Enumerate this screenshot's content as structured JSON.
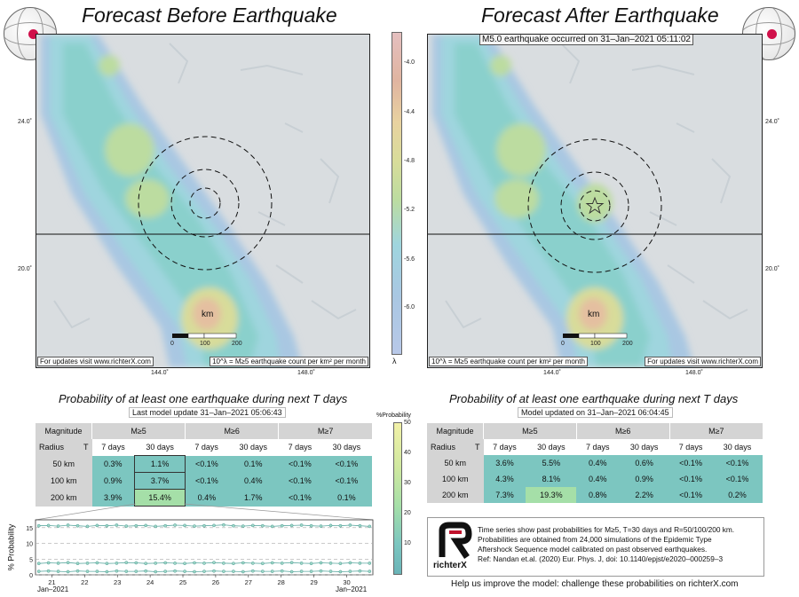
{
  "left_title": "Forecast Before Earthquake",
  "right_title": "Forecast After Earthquake",
  "eq_banner": "M5.0 earthquake occurred on 31–Jan–2021 05:11:02",
  "maps": {
    "lat_labels": [
      "24.0˚",
      "20.0˚"
    ],
    "lon_labels": [
      "144.0˚",
      "148.0˚"
    ],
    "scalebar": [
      "0",
      "100",
      "200"
    ],
    "scale_unit": "km",
    "updates_note": "For updates visit www.richterX.com",
    "density_note": "10^λ = M≥5 earthquake count per km² per month"
  },
  "colorbar": {
    "ticks": [
      "-4.0",
      "-4.4",
      "-4.8",
      "-5.2",
      "-5.6",
      "-6.0"
    ],
    "symbol": "λ"
  },
  "left_table": {
    "subtitle": "Probability of at least one earthquake during next T days",
    "update": "Last model update 31–Jan–2021 05:06:43",
    "mag_header": "Magnitude",
    "mags": [
      "M≥5",
      "M≥6",
      "M≥7"
    ],
    "radius_header": "Radius",
    "t_header": "T",
    "periods": [
      "7 days",
      "30 days",
      "7 days",
      "30 days",
      "7 days",
      "30 days"
    ],
    "rows": [
      {
        "radius": "50 km",
        "values": [
          "0.3%",
          "1.1%",
          "<0.1%",
          "0.1%",
          "<0.1%",
          "<0.1%"
        ]
      },
      {
        "radius": "100 km",
        "values": [
          "0.9%",
          "3.7%",
          "<0.1%",
          "0.4%",
          "<0.1%",
          "<0.1%"
        ]
      },
      {
        "radius": "200 km",
        "values": [
          "3.9%",
          "15.4%",
          "0.4%",
          "1.7%",
          "<0.1%",
          "0.1%"
        ]
      }
    ]
  },
  "right_table": {
    "subtitle": "Probability of at least one earthquake during next T days",
    "update": "Model updated on 31–Jan–2021 06:04:45",
    "mag_header": "Magnitude",
    "mags": [
      "M≥5",
      "M≥6",
      "M≥7"
    ],
    "radius_header": "Radius",
    "t_header": "T",
    "periods": [
      "7 days",
      "30 days",
      "7 days",
      "30 days",
      "7 days",
      "30 days"
    ],
    "rows": [
      {
        "radius": "50 km",
        "values": [
          "3.6%",
          "5.5%",
          "0.4%",
          "0.6%",
          "<0.1%",
          "<0.1%"
        ]
      },
      {
        "radius": "100 km",
        "values": [
          "4.3%",
          "8.1%",
          "0.4%",
          "0.9%",
          "<0.1%",
          "<0.1%"
        ]
      },
      {
        "radius": "200 km",
        "values": [
          "7.3%",
          "19.3%",
          "0.8%",
          "2.2%",
          "<0.1%",
          "0.2%"
        ]
      }
    ]
  },
  "prob_colorbar": {
    "label": "%Probability",
    "ticks": [
      "50",
      "40",
      "30",
      "20",
      "10"
    ]
  },
  "chart_data": {
    "type": "line",
    "ylabel": "% Probability",
    "xlabel": "",
    "x_ticks": [
      "21",
      "22",
      "23",
      "24",
      "25",
      "26",
      "27",
      "28",
      "29",
      "30"
    ],
    "x_start_label": "Jan–2021",
    "x_end_label": "Jan–2021",
    "y_ticks": [
      "15",
      "10",
      "5",
      "0"
    ],
    "ylim": [
      0,
      17.5
    ],
    "xlim": [
      20.5,
      30.8
    ],
    "grid": true,
    "series": [
      {
        "values": [
          15.6,
          15.7,
          15.5,
          15.8,
          15.6,
          15.4,
          15.7,
          15.6,
          15.8,
          15.5,
          15.6,
          15.7,
          15.4,
          15.6,
          15.8,
          15.7,
          15.5,
          15.6,
          15.7,
          15.9,
          15.6,
          15.5,
          15.7,
          15.6,
          15.4,
          15.6,
          15.7,
          15.8,
          15.6,
          15.5,
          15.7,
          15.6,
          15.8,
          15.6,
          15.4
        ]
      },
      {
        "values": [
          3.6,
          3.8,
          3.7,
          3.9,
          3.6,
          3.7,
          3.8,
          3.6,
          3.7,
          3.9,
          3.8,
          3.6,
          3.7,
          3.8,
          3.7,
          3.6,
          3.8,
          3.7,
          3.9,
          3.7,
          3.6,
          3.8,
          3.7,
          3.6,
          3.8,
          3.7,
          3.9,
          3.7,
          3.6,
          3.8,
          3.7,
          3.6,
          3.8,
          3.7,
          3.7
        ]
      },
      {
        "values": [
          1.1,
          1.2,
          1.1,
          1.0,
          1.2,
          1.1,
          1.1,
          1.0,
          1.2,
          1.1,
          1.1,
          1.2,
          1.0,
          1.1,
          1.2,
          1.1,
          1.0,
          1.1,
          1.2,
          1.1,
          1.1,
          1.0,
          1.2,
          1.1,
          1.1,
          1.2,
          1.0,
          1.1,
          1.1,
          1.2,
          1.1,
          1.0,
          1.1,
          1.2,
          1.1
        ]
      }
    ]
  },
  "footer_box": {
    "brand": "richterX",
    "lines": [
      "Time series show past probabilities for M≥5, T=30 days and R=50/100/200 km.",
      "Probabilities are obtained from 24,000 simulations of the Epidemic Type",
      "Aftershock Sequence model calibrated on past observed earthquakes.",
      "Ref: Nandan et.al. (2020) Eur. Phys. J, doi: 10.1140/epjst/e2020–000259–3"
    ]
  },
  "help_text": "Help us improve the model: challenge these probabilities on richterX.com"
}
